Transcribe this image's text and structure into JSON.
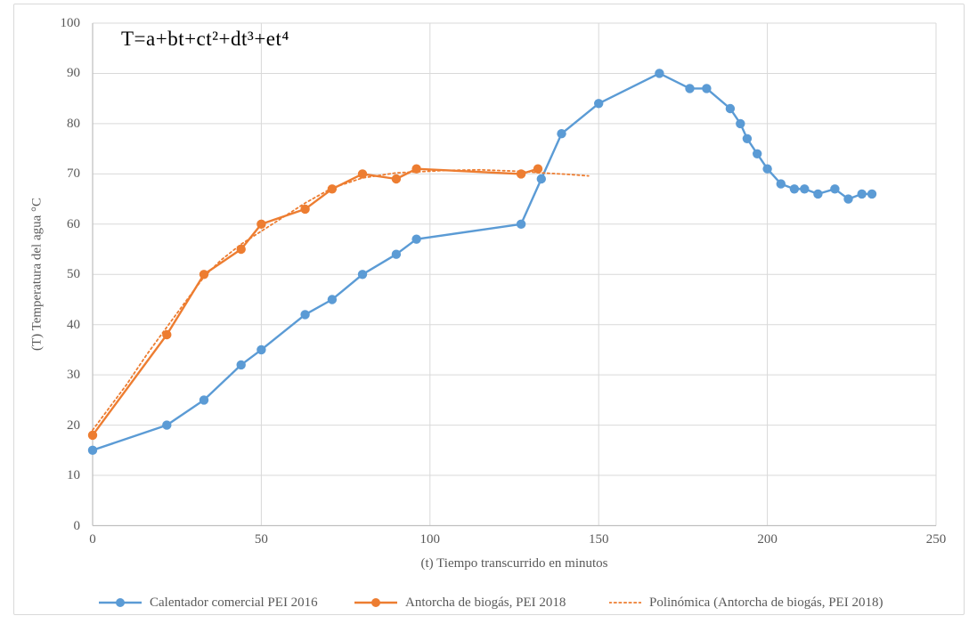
{
  "chart_data": {
    "type": "line",
    "annotation": "T=a+bt+ct²+dt³+et⁴",
    "xlabel": "(t) Tiempo transcurrido en minutos",
    "ylabel": "(T) Temperatura del agua °C",
    "xlim": [
      0,
      250
    ],
    "ylim": [
      0,
      100
    ],
    "x_ticks": [
      0,
      50,
      100,
      150,
      200,
      250
    ],
    "y_ticks": [
      0,
      10,
      20,
      30,
      40,
      50,
      60,
      70,
      80,
      90,
      100
    ],
    "grid": true,
    "legend_position": "bottom",
    "colors": {
      "grid": "#d9d9d9",
      "axis": "#bfbfbf",
      "text": "#595959",
      "annotation": "#000000",
      "frame_border": "#d9d9d9",
      "background": "#ffffff"
    },
    "series": [
      {
        "name": "Calentador comercial PEI 2016",
        "color": "#5b9bd5",
        "style": "solid",
        "marker": "circle",
        "points": [
          [
            0,
            15
          ],
          [
            22,
            20
          ],
          [
            33,
            25
          ],
          [
            44,
            32
          ],
          [
            50,
            35
          ],
          [
            63,
            42
          ],
          [
            71,
            45
          ],
          [
            80,
            50
          ],
          [
            90,
            54
          ],
          [
            96,
            57
          ],
          [
            127,
            60
          ],
          [
            133,
            69
          ],
          [
            139,
            78
          ],
          [
            150,
            84
          ],
          [
            168,
            90
          ],
          [
            177,
            87
          ],
          [
            182,
            87
          ],
          [
            189,
            83
          ],
          [
            192,
            80
          ],
          [
            194,
            77
          ],
          [
            197,
            74
          ],
          [
            200,
            71
          ],
          [
            204,
            68
          ],
          [
            208,
            67
          ],
          [
            211,
            67
          ],
          [
            215,
            66
          ],
          [
            220,
            67
          ],
          [
            224,
            65
          ],
          [
            228,
            66
          ],
          [
            231,
            66
          ]
        ]
      },
      {
        "name": "Antorcha de biogás, PEI 2018",
        "color": "#ed7d31",
        "style": "solid",
        "marker": "circle",
        "points": [
          [
            0,
            18
          ],
          [
            22,
            38
          ],
          [
            33,
            50
          ],
          [
            44,
            55
          ],
          [
            50,
            60
          ],
          [
            63,
            63
          ],
          [
            71,
            67
          ],
          [
            80,
            70
          ],
          [
            90,
            69
          ],
          [
            96,
            71
          ],
          [
            127,
            70
          ],
          [
            132,
            71
          ]
        ]
      },
      {
        "name": "Polinómica (Antorcha de biogás, PEI 2018)",
        "color": "#ed7d31",
        "style": "dotted",
        "marker": "none",
        "points": [
          [
            0,
            19
          ],
          [
            5,
            23.5
          ],
          [
            10,
            28
          ],
          [
            16,
            34
          ],
          [
            22,
            39.5
          ],
          [
            28,
            45
          ],
          [
            33,
            49.5
          ],
          [
            38,
            52.8
          ],
          [
            44,
            56
          ],
          [
            50,
            58.6
          ],
          [
            57,
            61.6
          ],
          [
            63,
            64.2
          ],
          [
            71,
            67.2
          ],
          [
            80,
            69.2
          ],
          [
            90,
            70.2
          ],
          [
            96,
            70.4
          ],
          [
            105,
            70.7
          ],
          [
            115,
            70.8
          ],
          [
            127,
            70.5
          ],
          [
            133,
            70.2
          ],
          [
            141,
            69.9
          ],
          [
            147,
            69.6
          ]
        ]
      }
    ]
  }
}
